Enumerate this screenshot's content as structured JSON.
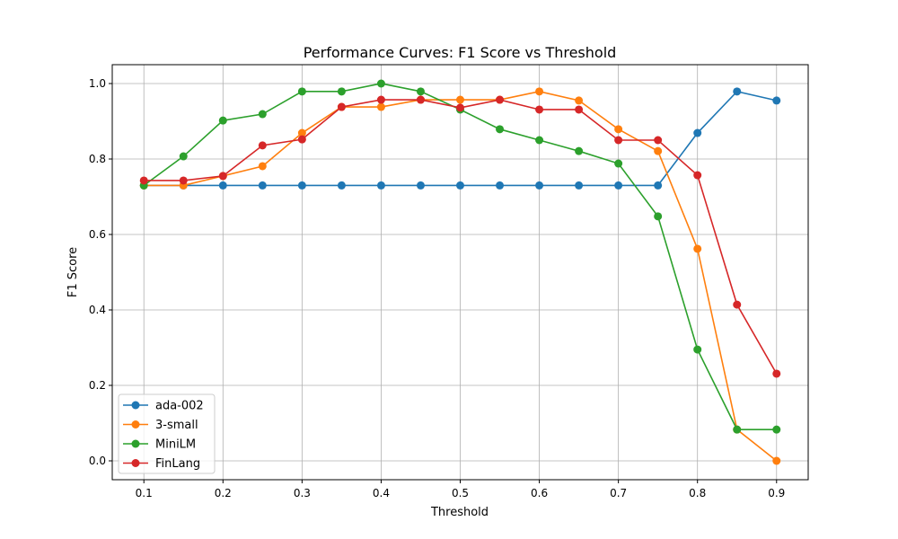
{
  "chart_data": {
    "type": "line",
    "title": "Performance Curves: F1 Score vs Threshold",
    "xlabel": "Threshold",
    "ylabel": "F1 Score",
    "xlim": [
      0.06,
      0.94
    ],
    "ylim": [
      -0.05,
      1.05
    ],
    "xticks": [
      0.1,
      0.2,
      0.3,
      0.4,
      0.5,
      0.6,
      0.7,
      0.8,
      0.9
    ],
    "yticks": [
      0.0,
      0.2,
      0.4,
      0.6,
      0.8,
      1.0
    ],
    "xtick_labels": [
      "0.1",
      "0.2",
      "0.3",
      "0.4",
      "0.5",
      "0.6",
      "0.7",
      "0.8",
      "0.9"
    ],
    "ytick_labels": [
      "0.0",
      "0.2",
      "0.4",
      "0.6",
      "0.8",
      "1.0"
    ],
    "grid": true,
    "legend_position": "lower-left",
    "x": [
      0.1,
      0.15,
      0.2,
      0.25,
      0.3,
      0.35,
      0.4,
      0.45,
      0.5,
      0.55,
      0.6,
      0.65,
      0.7,
      0.75,
      0.8,
      0.85,
      0.9
    ],
    "series": [
      {
        "name": "ada-002",
        "color": "#1f77b4",
        "values": [
          0.73,
          0.73,
          0.73,
          0.73,
          0.73,
          0.73,
          0.73,
          0.73,
          0.73,
          0.73,
          0.73,
          0.73,
          0.73,
          0.73,
          0.869,
          0.979,
          0.955
        ]
      },
      {
        "name": "3-small",
        "color": "#ff7f0e",
        "values": [
          0.73,
          0.73,
          0.755,
          0.781,
          0.869,
          0.938,
          0.938,
          0.957,
          0.957,
          0.957,
          0.979,
          0.955,
          0.879,
          0.821,
          0.562,
          0.083,
          0.0
        ]
      },
      {
        "name": "MiniLM",
        "color": "#2ca02c",
        "values": [
          0.73,
          0.807,
          0.902,
          0.919,
          0.979,
          0.979,
          1.0,
          0.979,
          0.931,
          0.879,
          0.85,
          0.821,
          0.788,
          0.648,
          0.295,
          0.083,
          0.083
        ]
      },
      {
        "name": "FinLang",
        "color": "#d62728",
        "values": [
          0.743,
          0.743,
          0.755,
          0.836,
          0.852,
          0.938,
          0.957,
          0.957,
          0.936,
          0.957,
          0.931,
          0.931,
          0.85,
          0.85,
          0.757,
          0.414,
          0.231
        ]
      }
    ]
  }
}
